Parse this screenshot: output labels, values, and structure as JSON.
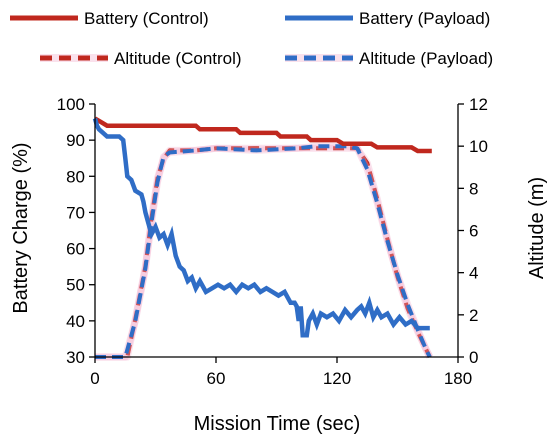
{
  "chart_data": {
    "type": "line",
    "title": "",
    "xlabel": "Mission Time (sec)",
    "ylabel_left": "Battery Charge (%)",
    "ylabel_right": "Altitude (m)",
    "xlim": [
      0,
      180
    ],
    "ylim_left": [
      30,
      100
    ],
    "ylim_right": [
      0,
      12
    ],
    "x_ticks": [
      "0",
      "60",
      "120",
      "180"
    ],
    "y_left_ticks": [
      "30",
      "40",
      "50",
      "60",
      "70",
      "80",
      "90",
      "100"
    ],
    "y_right_ticks": [
      "0",
      "2",
      "4",
      "6",
      "8",
      "10",
      "12"
    ],
    "grid": false,
    "legend_position": "top",
    "colors": {
      "control": "#c0281e",
      "payload": "#2f6dc6",
      "control_halo": "#f2a8c8"
    },
    "series": [
      {
        "name": "Battery (Control)",
        "axis": "left",
        "style": "solid",
        "color": "#c0281e",
        "points": [
          [
            0,
            96
          ],
          [
            3,
            95
          ],
          [
            6,
            94
          ],
          [
            50,
            94
          ],
          [
            52,
            93
          ],
          [
            70,
            93
          ],
          [
            72,
            92
          ],
          [
            90,
            92
          ],
          [
            92,
            91
          ],
          [
            105,
            91
          ],
          [
            107,
            90
          ],
          [
            120,
            90
          ],
          [
            123,
            89
          ],
          [
            137,
            89
          ],
          [
            140,
            88
          ],
          [
            157,
            88
          ],
          [
            160,
            87
          ],
          [
            167,
            87
          ]
        ]
      },
      {
        "name": "Battery (Payload)",
        "axis": "left",
        "style": "solid",
        "color": "#2f6dc6",
        "points": [
          [
            0,
            96
          ],
          [
            1,
            94
          ],
          [
            2,
            93
          ],
          [
            4,
            92
          ],
          [
            6,
            91
          ],
          [
            12,
            91
          ],
          [
            14,
            90
          ],
          [
            15,
            85
          ],
          [
            16,
            80
          ],
          [
            18,
            79
          ],
          [
            20,
            76
          ],
          [
            23,
            75
          ],
          [
            24,
            73
          ],
          [
            25,
            70
          ],
          [
            26,
            68
          ],
          [
            27,
            66
          ],
          [
            28,
            64
          ],
          [
            30,
            66
          ],
          [
            32,
            63
          ],
          [
            34,
            64
          ],
          [
            36,
            61
          ],
          [
            38,
            64
          ],
          [
            40,
            58
          ],
          [
            42,
            55
          ],
          [
            44,
            54
          ],
          [
            46,
            51
          ],
          [
            48,
            52
          ],
          [
            50,
            49
          ],
          [
            52,
            51
          ],
          [
            55,
            48
          ],
          [
            58,
            49
          ],
          [
            61,
            50
          ],
          [
            64,
            49
          ],
          [
            67,
            50
          ],
          [
            70,
            48
          ],
          [
            73,
            50
          ],
          [
            76,
            49
          ],
          [
            79,
            50
          ],
          [
            82,
            48
          ],
          [
            85,
            49
          ],
          [
            88,
            48
          ],
          [
            91,
            47
          ],
          [
            94,
            48
          ],
          [
            97,
            45
          ],
          [
            99,
            45
          ],
          [
            100,
            44
          ],
          [
            101,
            40
          ],
          [
            102,
            44
          ],
          [
            103,
            36
          ],
          [
            105,
            36
          ],
          [
            106,
            40
          ],
          [
            108,
            42
          ],
          [
            110,
            39
          ],
          [
            112,
            42
          ],
          [
            115,
            41
          ],
          [
            118,
            42
          ],
          [
            121,
            40
          ],
          [
            124,
            43
          ],
          [
            127,
            41
          ],
          [
            130,
            43
          ],
          [
            132,
            44
          ],
          [
            134,
            42
          ],
          [
            136,
            45
          ],
          [
            138,
            41
          ],
          [
            140,
            43
          ],
          [
            142,
            41
          ],
          [
            145,
            42
          ],
          [
            148,
            39
          ],
          [
            151,
            41
          ],
          [
            154,
            39
          ],
          [
            157,
            40
          ],
          [
            160,
            38
          ],
          [
            166,
            38
          ]
        ]
      },
      {
        "name": "Altitude (Control)",
        "axis": "right",
        "style": "dashed",
        "color": "#c0281e",
        "points": [
          [
            0,
            0
          ],
          [
            16,
            0
          ],
          [
            20,
            1.8
          ],
          [
            25,
            4.3
          ],
          [
            28,
            6.6
          ],
          [
            31,
            8.5
          ],
          [
            34,
            9.4
          ],
          [
            37,
            9.8
          ],
          [
            50,
            9.8
          ],
          [
            60,
            9.9
          ],
          [
            80,
            9.9
          ],
          [
            100,
            9.9
          ],
          [
            110,
            9.9
          ],
          [
            130,
            9.9
          ],
          [
            135,
            9.2
          ],
          [
            140,
            7.5
          ],
          [
            145,
            5.6
          ],
          [
            150,
            3.8
          ],
          [
            155,
            2.3
          ],
          [
            160,
            1.2
          ],
          [
            163,
            0.6
          ],
          [
            166,
            0
          ]
        ]
      },
      {
        "name": "Altitude (Payload)",
        "axis": "right",
        "style": "dashed",
        "color": "#2f6dc6",
        "points": [
          [
            0,
            0
          ],
          [
            15,
            0
          ],
          [
            20,
            1.7
          ],
          [
            25,
            4.2
          ],
          [
            28,
            6.4
          ],
          [
            31,
            8.3
          ],
          [
            34,
            9.5
          ],
          [
            37,
            9.7
          ],
          [
            50,
            9.8
          ],
          [
            60,
            9.9
          ],
          [
            80,
            9.8
          ],
          [
            100,
            9.9
          ],
          [
            110,
            10.0
          ],
          [
            125,
            10.0
          ],
          [
            130,
            9.9
          ],
          [
            135,
            8.9
          ],
          [
            140,
            7.3
          ],
          [
            145,
            5.5
          ],
          [
            150,
            3.9
          ],
          [
            155,
            2.5
          ],
          [
            160,
            1.3
          ],
          [
            164,
            0.4
          ],
          [
            166,
            0
          ]
        ]
      }
    ]
  }
}
